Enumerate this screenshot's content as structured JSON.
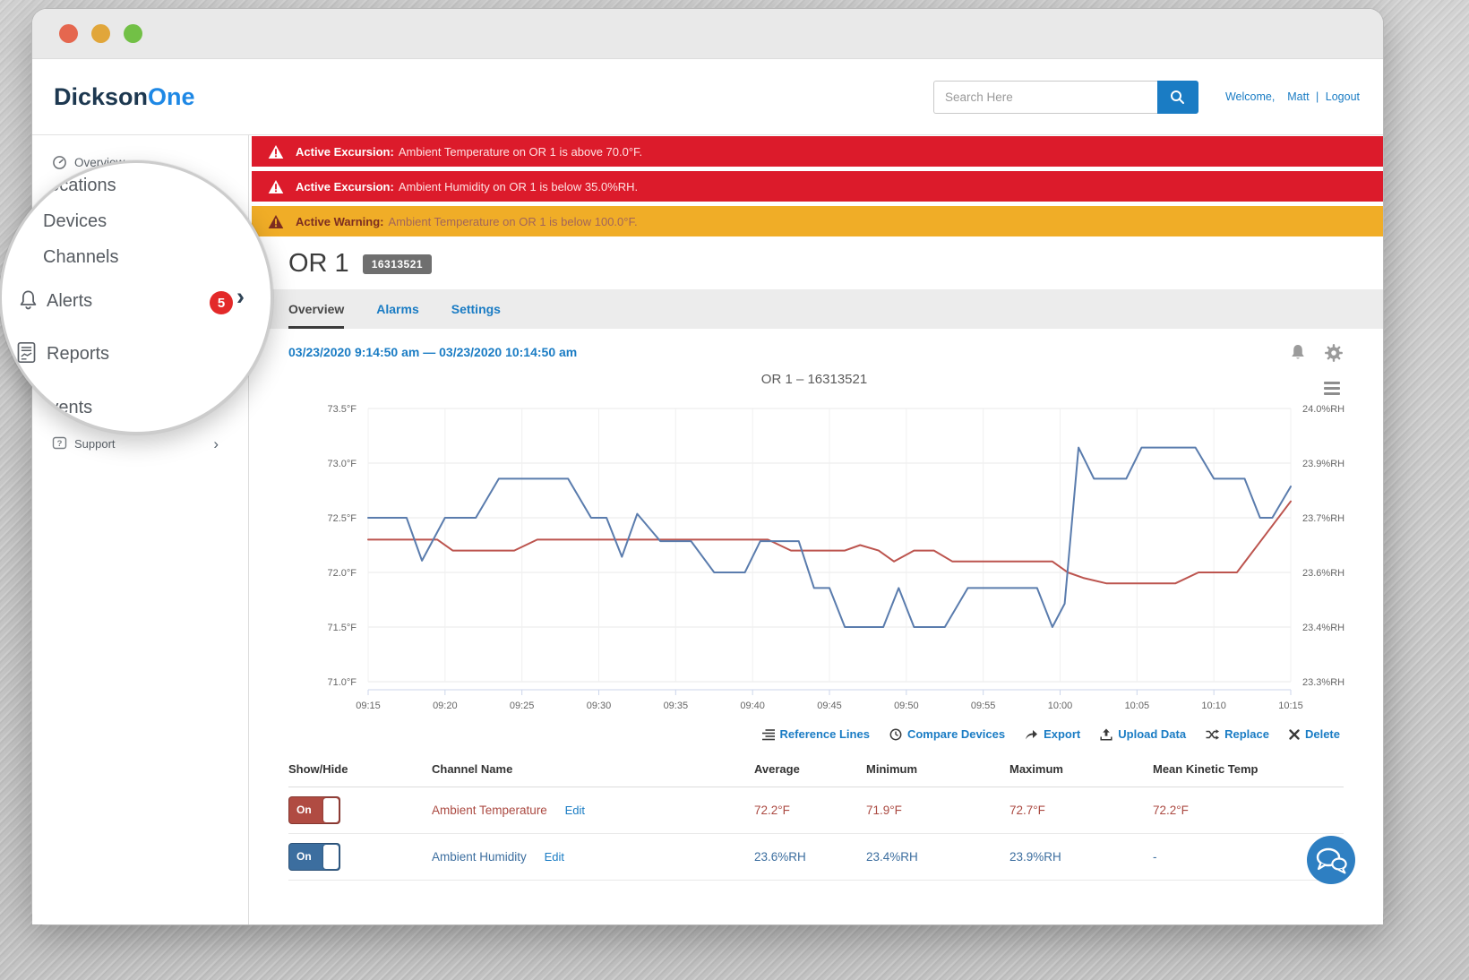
{
  "header": {
    "logo_primary": "Dickson",
    "logo_accent": "One",
    "search_placeholder": "Search Here",
    "welcome": "Welcome,",
    "user": "Matt",
    "separator": "|",
    "logout": "Logout"
  },
  "sidebar": {
    "overview": "Overview",
    "support": "Support",
    "support_chevron": "›",
    "magnified": {
      "locations": "Locations",
      "devices": "Devices",
      "channels": "Channels",
      "alerts": "Alerts",
      "alerts_badge": "5",
      "alerts_chevron": "›",
      "reports": "Reports",
      "events": "Events"
    }
  },
  "banners": [
    {
      "type": "excursion",
      "bold": "Active Excursion:",
      "text": "Ambient Temperature on OR 1 is above 70.0°F."
    },
    {
      "type": "excursion",
      "bold": "Active Excursion:",
      "text": "Ambient Humidity on OR 1 is below 35.0%RH."
    },
    {
      "type": "warning",
      "bold": "Active Warning:",
      "text": "Ambient Temperature on OR 1 is below 100.0°F."
    }
  ],
  "page": {
    "title": "OR 1",
    "device_id": "16313521",
    "tabs": [
      "Overview",
      "Alarms",
      "Settings"
    ],
    "date_range": "03/23/2020 9:14:50 am — 03/23/2020 10:14:50 am"
  },
  "chart_data": {
    "type": "line",
    "title": "OR 1 – 16313521",
    "legend": false,
    "grid": true,
    "x_range_minutes": [
      0,
      60
    ],
    "x_axis": {
      "labels": [
        "09:15",
        "09:20",
        "09:25",
        "09:30",
        "09:35",
        "09:40",
        "09:45",
        "09:50",
        "09:55",
        "10:00",
        "10:05",
        "10:10",
        "10:15"
      ]
    },
    "y_axis_left": {
      "unit": "°F",
      "min": 71.0,
      "max": 73.5,
      "labels": [
        "73.5°F",
        "73.0°F",
        "72.5°F",
        "72.0°F",
        "71.5°F",
        "71.0°F"
      ]
    },
    "y_axis_right": {
      "unit": "%RH",
      "min": 23.3,
      "max": 24.0,
      "labels": [
        "24.0%RH",
        "23.9%RH",
        "23.7%RH",
        "23.6%RH",
        "23.4%RH",
        "23.3%RH"
      ]
    },
    "series": [
      {
        "name": "Ambient Temperature",
        "axis": "left",
        "unit": "°F",
        "color": "#bc544e",
        "points_minute_value": [
          [
            0,
            72.3
          ],
          [
            4.5,
            72.3
          ],
          [
            5.5,
            72.2
          ],
          [
            9.5,
            72.2
          ],
          [
            11,
            72.3
          ],
          [
            26,
            72.3
          ],
          [
            27.5,
            72.2
          ],
          [
            31,
            72.2
          ],
          [
            32,
            72.25
          ],
          [
            33.2,
            72.2
          ],
          [
            34.2,
            72.1
          ],
          [
            35.5,
            72.2
          ],
          [
            36.8,
            72.2
          ],
          [
            38,
            72.1
          ],
          [
            44.5,
            72.1
          ],
          [
            45.5,
            72.0
          ],
          [
            46.5,
            71.95
          ],
          [
            48,
            71.9
          ],
          [
            52.5,
            71.9
          ],
          [
            54,
            72.0
          ],
          [
            56.5,
            72.0
          ],
          [
            60,
            72.65
          ]
        ]
      },
      {
        "name": "Ambient Humidity",
        "axis": "right",
        "unit": "%RH",
        "color": "#5a7cad",
        "points_minute_value": [
          [
            0,
            23.72
          ],
          [
            2.5,
            23.72
          ],
          [
            3.5,
            23.61
          ],
          [
            5,
            23.72
          ],
          [
            7,
            23.72
          ],
          [
            8.5,
            23.82
          ],
          [
            13,
            23.82
          ],
          [
            14.5,
            23.72
          ],
          [
            15.5,
            23.72
          ],
          [
            16.5,
            23.62
          ],
          [
            17.5,
            23.73
          ],
          [
            19,
            23.66
          ],
          [
            21,
            23.66
          ],
          [
            22.5,
            23.58
          ],
          [
            24.5,
            23.58
          ],
          [
            25.5,
            23.66
          ],
          [
            28,
            23.66
          ],
          [
            29,
            23.54
          ],
          [
            30,
            23.54
          ],
          [
            31,
            23.44
          ],
          [
            33.5,
            23.44
          ],
          [
            34.5,
            23.54
          ],
          [
            35.5,
            23.44
          ],
          [
            37.5,
            23.44
          ],
          [
            39,
            23.54
          ],
          [
            43.5,
            23.54
          ],
          [
            44.5,
            23.44
          ],
          [
            45.3,
            23.5
          ],
          [
            46.2,
            23.9
          ],
          [
            47.2,
            23.82
          ],
          [
            49.3,
            23.82
          ],
          [
            50.3,
            23.9
          ],
          [
            53.8,
            23.9
          ],
          [
            55,
            23.82
          ],
          [
            57,
            23.82
          ],
          [
            58,
            23.72
          ],
          [
            58.8,
            23.72
          ],
          [
            60,
            23.8
          ]
        ]
      }
    ]
  },
  "actions": [
    {
      "label": "Reference Lines"
    },
    {
      "label": "Compare Devices"
    },
    {
      "label": "Export"
    },
    {
      "label": "Upload Data"
    },
    {
      "label": "Replace"
    },
    {
      "label": "Delete"
    }
  ],
  "table": {
    "headers": [
      "Show/Hide",
      "Channel Name",
      "Average",
      "Minimum",
      "Maximum",
      "Mean Kinetic Temp"
    ],
    "rows": [
      {
        "toggle": "On",
        "channel": "Ambient Temperature",
        "edit": "Edit",
        "average": "72.2°F",
        "minimum": "71.9°F",
        "maximum": "72.7°F",
        "mkt": "72.2°F",
        "accent": "#ab4a42"
      },
      {
        "toggle": "On",
        "channel": "Ambient Humidity",
        "edit": "Edit",
        "average": "23.6%RH",
        "minimum": "23.4%RH",
        "maximum": "23.9%RH",
        "mkt": "-",
        "accent": "#3c6e9f"
      }
    ]
  }
}
